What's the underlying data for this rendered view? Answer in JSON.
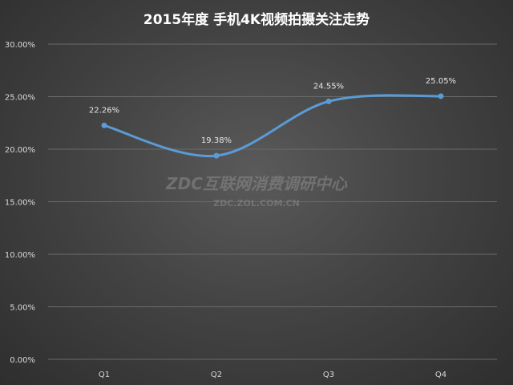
{
  "chart_data": {
    "type": "line",
    "title": "2015年度 手机4K视频拍摄关注走势",
    "categories": [
      "Q1",
      "Q2",
      "Q3",
      "Q4"
    ],
    "series": [
      {
        "values": [
          22.26,
          19.38,
          24.55,
          25.05
        ]
      }
    ],
    "data_labels": [
      "22.26%",
      "19.38%",
      "24.55%",
      "25.05%"
    ],
    "y_ticks": [
      "0.00%",
      "5.00%",
      "10.00%",
      "15.00%",
      "20.00%",
      "25.00%",
      "30.00%"
    ],
    "ylim": [
      0,
      30
    ],
    "grid": true,
    "smooth": true,
    "line_color": "#5b9bd5"
  },
  "watermark": {
    "line1": "ZDC互联网消费调研中心",
    "line2": "ZDC.ZOL.COM.CN"
  }
}
